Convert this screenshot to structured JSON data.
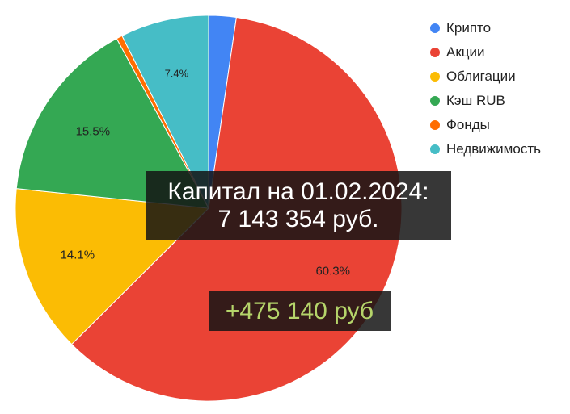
{
  "chart_data": {
    "type": "pie",
    "slices": [
      {
        "label": "Крипто",
        "value": 2.3,
        "color": "#4285f4",
        "data_label": ""
      },
      {
        "label": "Акции",
        "value": 60.3,
        "color": "#ea4335",
        "data_label": "60.3%"
      },
      {
        "label": "Облигации",
        "value": 14.1,
        "color": "#fbbc04",
        "data_label": "14.1%"
      },
      {
        "label": "Кэш RUB",
        "value": 15.5,
        "color": "#34a853",
        "data_label": "15.5%"
      },
      {
        "label": "Фонды",
        "value": 0.5,
        "color": "#ff6d01",
        "data_label": ""
      },
      {
        "label": "Недвижимость",
        "value": 7.4,
        "color": "#46bdc6",
        "data_label": "7.4%"
      }
    ],
    "legend_position": "top-right"
  },
  "overlay": {
    "capital_line1": "Капитал на 01.02.2024:",
    "capital_line2": "7 143 354 руб.",
    "delta": "+475 140 руб"
  }
}
